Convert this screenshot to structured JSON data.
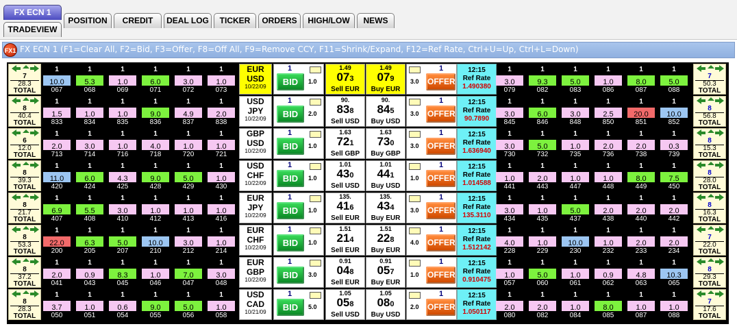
{
  "tabs": {
    "top": [
      {
        "label": "FX ECN 1",
        "selected": true
      },
      {
        "label": "POSITION"
      },
      {
        "label": "CREDIT"
      },
      {
        "label": "DEAL LOG"
      },
      {
        "label": "TICKER"
      },
      {
        "label": "ORDERS"
      },
      {
        "label": "HIGH/LOW"
      },
      {
        "label": "NEWS"
      }
    ],
    "tradeview_label": "TRADEVIEW"
  },
  "window": {
    "icon_text": "FX1",
    "title": "FX ECN 1 (F1=Clear All, F2=Bid, F3=Offer, F8=Off All, F9=Remove CCY, F11=Shrink/Expand, F12=Ref Rate, Ctrl+U=Up, Ctrl+L=Down)"
  },
  "colors": {
    "bid_button": "#1fb844",
    "offer_button": "#f06a1a",
    "level_green": "#7df23e",
    "level_pink": "#f6c8f2",
    "level_blue": "#9cc6f2",
    "level_red": "#f26a6a",
    "ref_rate_bg": "#6ef0f6",
    "highlight_yellow": "#ffff00",
    "ref_rate_value": "#d20000",
    "total_box_bg": "#fffbd8"
  },
  "labels": {
    "total": "TOTAL",
    "bid": "BID",
    "offer": "OFFER",
    "ref_rate": "Ref Rate"
  },
  "rows": [
    {
      "ccy1": "EUR",
      "ccy2": "USD",
      "date": "10/22/09",
      "highlight": true,
      "left_count": "7",
      "left_total": "28.3",
      "right_count": "7",
      "right_total": "50.3",
      "bid_level": "1",
      "bid_size": "1.0",
      "offer_level": "1",
      "offer_size": "3.0",
      "sell_big": "1.49",
      "sell_pips": "07",
      "sell_frac": "3",
      "sell_label": "Sell EUR",
      "buy_big": "1.49",
      "buy_pips": "07",
      "buy_frac": "9",
      "buy_label": "Buy EUR",
      "time": "12:15",
      "ref_rate": "1.490380",
      "bids": [
        {
          "level": "1",
          "value": "10.0",
          "code": "067",
          "color": "blue"
        },
        {
          "level": "1",
          "value": "5.3",
          "code": "068",
          "color": "green"
        },
        {
          "level": "1",
          "value": "1.0",
          "code": "069",
          "color": "pink"
        },
        {
          "level": "1",
          "value": "6.0",
          "code": "071",
          "color": "green"
        },
        {
          "level": "1",
          "value": "3.0",
          "code": "072",
          "color": "pink"
        },
        {
          "level": "1",
          "value": "1.0",
          "code": "073",
          "color": "pink"
        }
      ],
      "offers": [
        {
          "level": "1",
          "value": "3.0",
          "code": "079",
          "color": "pink"
        },
        {
          "level": "1",
          "value": "9.3",
          "code": "082",
          "color": "green"
        },
        {
          "level": "1",
          "value": "5.0",
          "code": "083",
          "color": "green"
        },
        {
          "level": "1",
          "value": "1.0",
          "code": "086",
          "color": "pink"
        },
        {
          "level": "1",
          "value": "8.0",
          "code": "087",
          "color": "green"
        },
        {
          "level": "1",
          "value": "5.0",
          "code": "088",
          "color": "green"
        }
      ]
    },
    {
      "ccy1": "USD",
      "ccy2": "JPY",
      "date": "10/22/09",
      "highlight": false,
      "left_count": "8",
      "left_total": "40.4",
      "right_count": "8",
      "right_total": "56.8",
      "bid_level": "1",
      "bid_size": "2.0",
      "offer_level": "1",
      "offer_size": "3.0",
      "sell_big": "90.",
      "sell_pips": "83",
      "sell_frac": "8",
      "sell_label": "Sell USD",
      "buy_big": "90.",
      "buy_pips": "84",
      "buy_frac": "5",
      "buy_label": "Buy USD",
      "time": "12:15",
      "ref_rate": "90.7890",
      "bids": [
        {
          "level": "1",
          "value": "1.5",
          "code": "833",
          "color": "pink"
        },
        {
          "level": "1",
          "value": "1.0",
          "code": "834",
          "color": "pink"
        },
        {
          "level": "1",
          "value": "1.0",
          "code": "835",
          "color": "pink"
        },
        {
          "level": "1",
          "value": "9.0",
          "code": "836",
          "color": "green"
        },
        {
          "level": "1",
          "value": "4.9",
          "code": "837",
          "color": "pink"
        },
        {
          "level": "1",
          "value": "2.0",
          "code": "838",
          "color": "pink"
        }
      ],
      "offers": [
        {
          "level": "1",
          "value": "3.0",
          "code": "845",
          "color": "pink"
        },
        {
          "level": "1",
          "value": "6.0",
          "code": "846",
          "color": "green"
        },
        {
          "level": "1",
          "value": "3.0",
          "code": "848",
          "color": "pink"
        },
        {
          "level": "1",
          "value": "2.5",
          "code": "850",
          "color": "pink"
        },
        {
          "level": "1",
          "value": "20.0",
          "code": "851",
          "color": "red"
        },
        {
          "level": "1",
          "value": "10.0",
          "code": "852",
          "color": "blue"
        }
      ]
    },
    {
      "ccy1": "GBP",
      "ccy2": "USD",
      "date": "10/22/09",
      "highlight": false,
      "left_count": "6",
      "left_total": "12.0",
      "right_count": "8",
      "right_total": "15.3",
      "bid_level": "1",
      "bid_size": "1.0",
      "offer_level": "1",
      "offer_size": "3.0",
      "sell_big": "1.63",
      "sell_pips": "72",
      "sell_frac": "1",
      "sell_label": "Sell GBP",
      "buy_big": "1.63",
      "buy_pips": "73",
      "buy_frac": "0",
      "buy_label": "Buy GBP",
      "time": "12:15",
      "ref_rate": "1.636940",
      "bids": [
        {
          "level": "1",
          "value": "2.0",
          "code": "713",
          "color": "pink"
        },
        {
          "level": "1",
          "value": "3.0",
          "code": "714",
          "color": "pink"
        },
        {
          "level": "1",
          "value": "1.0",
          "code": "716",
          "color": "pink"
        },
        {
          "level": "1",
          "value": "4.0",
          "code": "718",
          "color": "pink"
        },
        {
          "level": "1",
          "value": "1.0",
          "code": "720",
          "color": "pink"
        },
        {
          "level": "1",
          "value": "1.0",
          "code": "721",
          "color": "pink"
        }
      ],
      "offers": [
        {
          "level": "1",
          "value": "3.0",
          "code": "730",
          "color": "pink"
        },
        {
          "level": "1",
          "value": "5.0",
          "code": "732",
          "color": "green"
        },
        {
          "level": "1",
          "value": "1.0",
          "code": "735",
          "color": "pink"
        },
        {
          "level": "1",
          "value": "2.0",
          "code": "736",
          "color": "pink"
        },
        {
          "level": "1",
          "value": "2.0",
          "code": "738",
          "color": "pink"
        },
        {
          "level": "1",
          "value": "0.3",
          "code": "739",
          "color": "pink"
        }
      ]
    },
    {
      "ccy1": "USD",
      "ccy2": "CHF",
      "date": "10/22/09",
      "highlight": false,
      "left_count": "8",
      "left_total": "39.3",
      "right_count": "8",
      "right_total": "28.0",
      "bid_level": "1",
      "bid_size": "1.0",
      "offer_level": "1",
      "offer_size": "1.0",
      "sell_big": "1.01",
      "sell_pips": "43",
      "sell_frac": "0",
      "sell_label": "Sell USD",
      "buy_big": "1.01",
      "buy_pips": "44",
      "buy_frac": "1",
      "buy_label": "Buy USD",
      "time": "12:15",
      "ref_rate": "1.014588",
      "bids": [
        {
          "level": "1",
          "value": "11.0",
          "code": "420",
          "color": "blue"
        },
        {
          "level": "1",
          "value": "6.0",
          "code": "424",
          "color": "green"
        },
        {
          "level": "1",
          "value": "4.3",
          "code": "425",
          "color": "pink"
        },
        {
          "level": "1",
          "value": "9.0",
          "code": "428",
          "color": "green"
        },
        {
          "level": "1",
          "value": "5.0",
          "code": "429",
          "color": "green"
        },
        {
          "level": "1",
          "value": "1.0",
          "code": "430",
          "color": "pink"
        }
      ],
      "offers": [
        {
          "level": "1",
          "value": "1.0",
          "code": "441",
          "color": "pink"
        },
        {
          "level": "1",
          "value": "2.0",
          "code": "443",
          "color": "pink"
        },
        {
          "level": "1",
          "value": "1.0",
          "code": "447",
          "color": "pink"
        },
        {
          "level": "1",
          "value": "1.0",
          "code": "448",
          "color": "pink"
        },
        {
          "level": "1",
          "value": "8.0",
          "code": "449",
          "color": "green"
        },
        {
          "level": "1",
          "value": "7.5",
          "code": "450",
          "color": "green"
        }
      ]
    },
    {
      "ccy1": "EUR",
      "ccy2": "JPY",
      "date": "10/22/09",
      "highlight": false,
      "left_count": "8",
      "left_total": "21.7",
      "right_count": "8",
      "right_total": "16.3",
      "bid_level": "1",
      "bid_size": "1.0",
      "offer_level": "1",
      "offer_size": "3.0",
      "sell_big": "135.",
      "sell_pips": "41",
      "sell_frac": "6",
      "sell_label": "Sell EUR",
      "buy_big": "135.",
      "buy_pips": "43",
      "buy_frac": "4",
      "buy_label": "Buy EUR",
      "time": "12:15",
      "ref_rate": "135.3110",
      "bids": [
        {
          "level": "1",
          "value": "6.9",
          "code": "407",
          "color": "green"
        },
        {
          "level": "1",
          "value": "5.5",
          "code": "408",
          "color": "green"
        },
        {
          "level": "1",
          "value": "3.0",
          "code": "410",
          "color": "pink"
        },
        {
          "level": "1",
          "value": "1.0",
          "code": "412",
          "color": "pink"
        },
        {
          "level": "1",
          "value": "1.0",
          "code": "413",
          "color": "pink"
        },
        {
          "level": "1",
          "value": "1.0",
          "code": "416",
          "color": "pink"
        }
      ],
      "offers": [
        {
          "level": "1",
          "value": "3.0",
          "code": "434",
          "color": "pink"
        },
        {
          "level": "1",
          "value": "1.0",
          "code": "435",
          "color": "pink"
        },
        {
          "level": "1",
          "value": "5.0",
          "code": "437",
          "color": "green"
        },
        {
          "level": "1",
          "value": "2.0",
          "code": "438",
          "color": "pink"
        },
        {
          "level": "1",
          "value": "2.0",
          "code": "440",
          "color": "pink"
        },
        {
          "level": "1",
          "value": "2.0",
          "code": "442",
          "color": "pink"
        }
      ]
    },
    {
      "ccy1": "EUR",
      "ccy2": "CHF",
      "date": "10/22/09",
      "highlight": false,
      "left_count": "8",
      "left_total": "53.3",
      "right_count": "7",
      "right_total": "22.0",
      "bid_level": "1",
      "bid_size": "1.0",
      "offer_level": "1",
      "offer_size": "4.0",
      "sell_big": "1.51",
      "sell_pips": "21",
      "sell_frac": "4",
      "sell_label": "Sell EUR",
      "buy_big": "1.51",
      "buy_pips": "22",
      "buy_frac": "8",
      "buy_label": "Buy EUR",
      "time": "12:15",
      "ref_rate": "1.512142",
      "bids": [
        {
          "level": "1",
          "value": "22.0",
          "code": "200",
          "color": "red"
        },
        {
          "level": "1",
          "value": "6.3",
          "code": "205",
          "color": "green"
        },
        {
          "level": "1",
          "value": "5.0",
          "code": "207",
          "color": "green"
        },
        {
          "level": "1",
          "value": "10.0",
          "code": "210",
          "color": "blue"
        },
        {
          "level": "1",
          "value": "3.0",
          "code": "212",
          "color": "pink"
        },
        {
          "level": "1",
          "value": "1.0",
          "code": "214",
          "color": "pink"
        }
      ],
      "offers": [
        {
          "level": "1",
          "value": "4.0",
          "code": "228",
          "color": "pink"
        },
        {
          "level": "1",
          "value": "1.0",
          "code": "229",
          "color": "pink"
        },
        {
          "level": "1",
          "value": "10.0",
          "code": "230",
          "color": "blue"
        },
        {
          "level": "1",
          "value": "1.0",
          "code": "232",
          "color": "pink"
        },
        {
          "level": "1",
          "value": "2.0",
          "code": "233",
          "color": "pink"
        },
        {
          "level": "1",
          "value": "2.0",
          "code": "234",
          "color": "pink"
        }
      ]
    },
    {
      "ccy1": "EUR",
      "ccy2": "GBP",
      "date": "10/22/09",
      "highlight": false,
      "left_count": "8",
      "left_total": "37.2",
      "right_count": "8",
      "right_total": "29.3",
      "bid_level": "1",
      "bid_size": "3.0",
      "offer_level": "1",
      "offer_size": "1.0",
      "sell_big": "0.91",
      "sell_pips": "04",
      "sell_frac": "8",
      "sell_label": "Sell EUR",
      "buy_big": "0.91",
      "buy_pips": "05",
      "buy_frac": "7",
      "buy_label": "Buy EUR",
      "time": "12:15",
      "ref_rate": "0.910475",
      "bids": [
        {
          "level": "1",
          "value": "2.0",
          "code": "041",
          "color": "pink"
        },
        {
          "level": "1",
          "value": "0.9",
          "code": "043",
          "color": "pink"
        },
        {
          "level": "1",
          "value": "8.3",
          "code": "045",
          "color": "green"
        },
        {
          "level": "1",
          "value": "1.0",
          "code": "046",
          "color": "pink"
        },
        {
          "level": "1",
          "value": "7.0",
          "code": "047",
          "color": "green"
        },
        {
          "level": "1",
          "value": "3.0",
          "code": "048",
          "color": "pink"
        }
      ],
      "offers": [
        {
          "level": "1",
          "value": "1.0",
          "code": "057",
          "color": "pink"
        },
        {
          "level": "1",
          "value": "5.0",
          "code": "060",
          "color": "green"
        },
        {
          "level": "1",
          "value": "1.0",
          "code": "061",
          "color": "pink"
        },
        {
          "level": "1",
          "value": "0.9",
          "code": "062",
          "color": "pink"
        },
        {
          "level": "1",
          "value": "4.8",
          "code": "063",
          "color": "pink"
        },
        {
          "level": "1",
          "value": "10.3",
          "code": "065",
          "color": "blue"
        }
      ]
    },
    {
      "ccy1": "USD",
      "ccy2": "CAD",
      "date": "10/21/09",
      "highlight": false,
      "left_count": "8",
      "left_total": "28.3",
      "right_count": "7",
      "right_total": "17.6",
      "bid_level": "1",
      "bid_size": "5.0",
      "offer_level": "1",
      "offer_size": "2.0",
      "sell_big": "1.05",
      "sell_pips": "05",
      "sell_frac": "8",
      "sell_label": "Sell USD",
      "buy_big": "1.05",
      "buy_pips": "08",
      "buy_frac": "0",
      "buy_label": "Buy USD",
      "time": "12:15",
      "ref_rate": "1.050117",
      "bids": [
        {
          "level": "1",
          "value": "3.7",
          "code": "050",
          "color": "pink"
        },
        {
          "level": "1",
          "value": "1.0",
          "code": "051",
          "color": "pink"
        },
        {
          "level": "1",
          "value": "0.6",
          "code": "054",
          "color": "pink"
        },
        {
          "level": "1",
          "value": "9.0",
          "code": "055",
          "color": "green"
        },
        {
          "level": "1",
          "value": "5.0",
          "code": "056",
          "color": "green"
        },
        {
          "level": "1",
          "value": "1.0",
          "code": "058",
          "color": "pink"
        }
      ],
      "offers": [
        {
          "level": "1",
          "value": "2.0",
          "code": "080",
          "color": "pink"
        },
        {
          "level": "1",
          "value": "2.0",
          "code": "082",
          "color": "pink"
        },
        {
          "level": "1",
          "value": "1.0",
          "code": "084",
          "color": "pink"
        },
        {
          "level": "1",
          "value": "8.0",
          "code": "085",
          "color": "green"
        },
        {
          "level": "1",
          "value": "1.0",
          "code": "087",
          "color": "pink"
        },
        {
          "level": "1",
          "value": "1.0",
          "code": "088",
          "color": "pink"
        }
      ]
    }
  ]
}
